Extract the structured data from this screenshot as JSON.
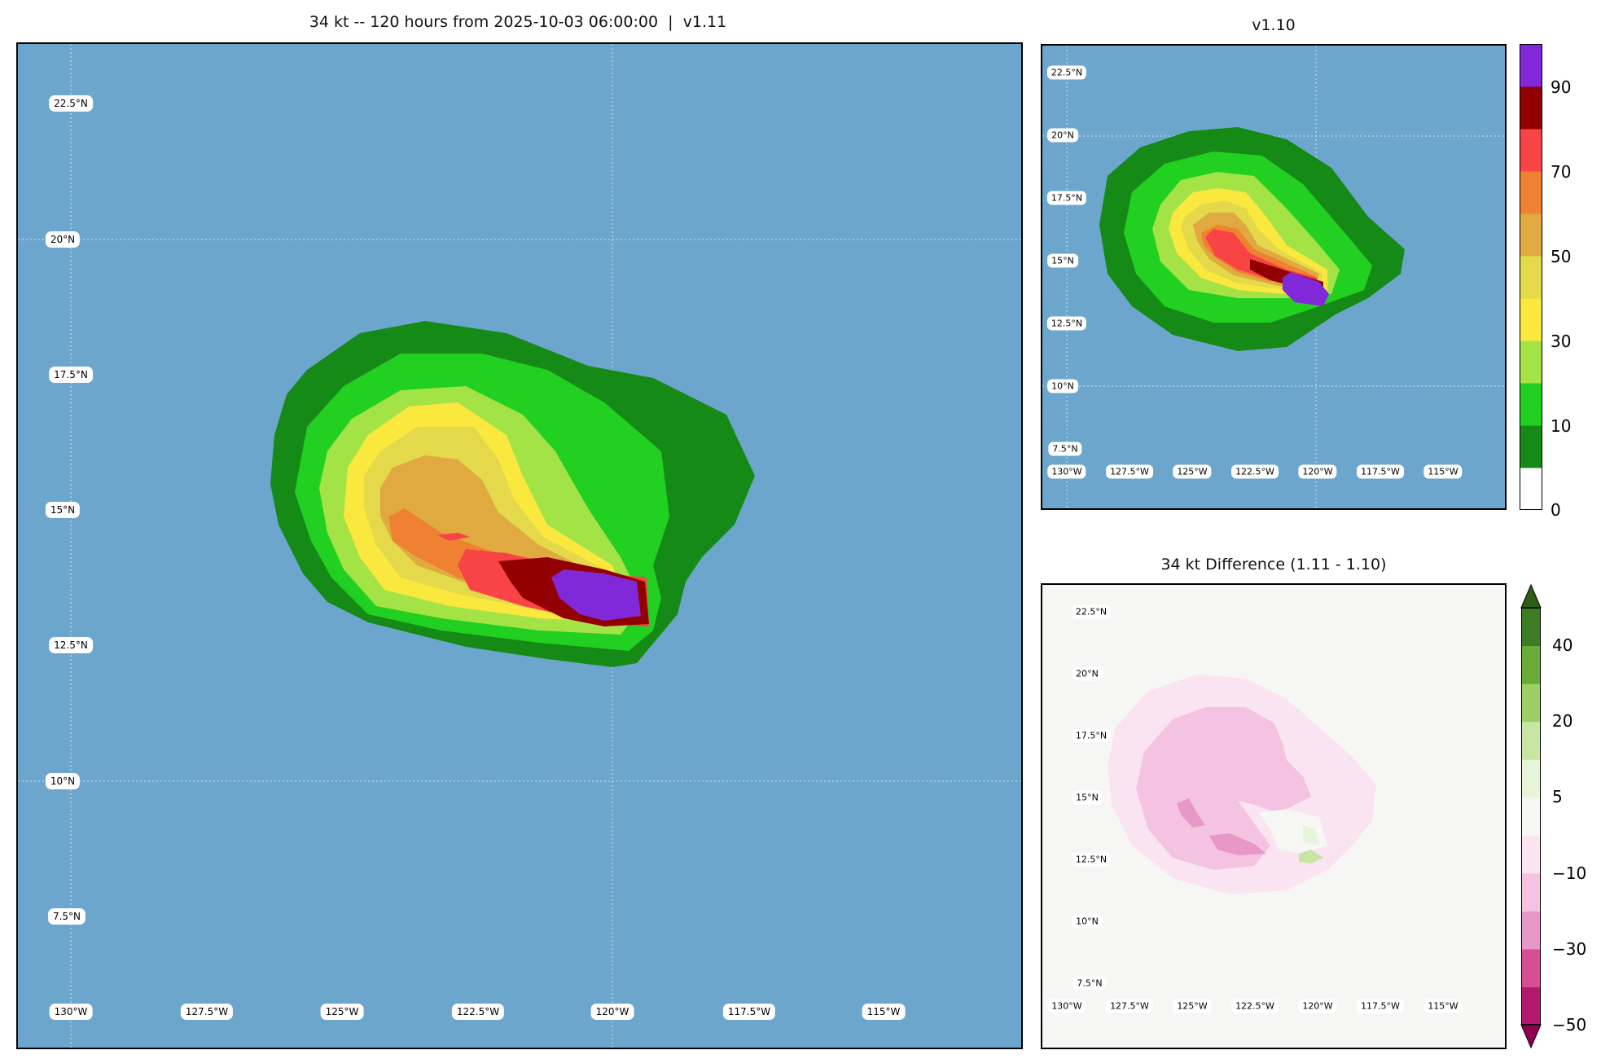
{
  "main": {
    "title": "34 kt -- 120 hours from 2025-10-03 06:00:00  |  v1.11",
    "lat_labels": [
      "22.5°N",
      "20°N",
      "17.5°N",
      "15°N",
      "12.5°N",
      "10°N",
      "7.5°N"
    ],
    "lon_labels": [
      "130°W",
      "127.5°W",
      "125°W",
      "122.5°W",
      "120°W",
      "117.5°W",
      "115°W"
    ],
    "ocean_color": "#6ca6cc"
  },
  "v110": {
    "title": "v1.10",
    "lat_labels": [
      "22.5°N",
      "20°N",
      "17.5°N",
      "15°N",
      "12.5°N",
      "10°N",
      "7.5°N"
    ],
    "lon_labels": [
      "130°W",
      "127.5°W",
      "125°W",
      "122.5°W",
      "120°W",
      "117.5°W",
      "115°W"
    ],
    "colorbar_ticks": [
      "0",
      "10",
      "30",
      "50",
      "70",
      "90"
    ]
  },
  "diff": {
    "title": "34 kt Difference (1.11 - 1.10)",
    "lat_labels": [
      "22.5°N",
      "20°N",
      "17.5°N",
      "15°N",
      "12.5°N",
      "10°N",
      "7.5°N"
    ],
    "lon_labels": [
      "130°W",
      "127.5°W",
      "125°W",
      "122.5°W",
      "120°W",
      "117.5°W",
      "115°W"
    ],
    "colorbar_ticks": [
      "40",
      "20",
      "5",
      "−10",
      "−30",
      "−50"
    ],
    "background_color": "#f6f6f4"
  },
  "prob_colors": [
    "#ffffff",
    "#168a16",
    "#22d022",
    "#a3e346",
    "#fae83e",
    "#e3d94b",
    "#e0aa40",
    "#ee8232",
    "#f84444",
    "#930000",
    "#8128d8"
  ],
  "diff_colors": [
    "#b3186c",
    "#d64f95",
    "#e898c6",
    "#f4c3e1",
    "#fbe4f1",
    "#f6f6f4",
    "#e6f4d8",
    "#c7e6a3",
    "#9cce64",
    "#6aab3a",
    "#3e7c24"
  ]
}
